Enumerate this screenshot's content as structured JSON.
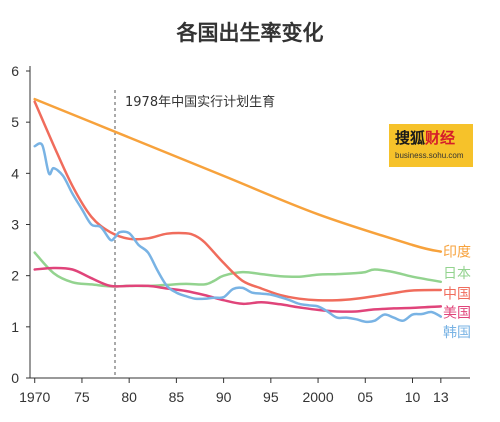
{
  "logo": {
    "name_part1": "搜狐",
    "name_part2": "财经",
    "url": "business.sohu.com"
  },
  "chart_data": {
    "type": "line",
    "title": "各国出生率变化",
    "xlim": [
      1969.5,
      2014.5
    ],
    "ylim": [
      0,
      6
    ],
    "yticks": [
      0,
      1,
      2,
      3,
      4,
      5,
      6
    ],
    "xticks": [
      {
        "value": 1970,
        "label": "1970"
      },
      {
        "value": 1975,
        "label": "75"
      },
      {
        "value": 1980,
        "label": "80"
      },
      {
        "value": 1985,
        "label": "85"
      },
      {
        "value": 1990,
        "label": "90"
      },
      {
        "value": 1995,
        "label": "95"
      },
      {
        "value": 2000,
        "label": "2000"
      },
      {
        "value": 2005,
        "label": "05"
      },
      {
        "value": 2010,
        "label": "10"
      },
      {
        "value": 2013,
        "label": "13"
      }
    ],
    "annotation": {
      "x": 1978.5,
      "text": "1978年中国实行计划生育"
    },
    "grid": false,
    "legend": "right-end labels",
    "series": [
      {
        "name": "印度",
        "color": "#f7a23c",
        "x": [
          1970,
          1980,
          1990,
          2000,
          2010,
          2013
        ],
        "y": [
          5.45,
          4.7,
          3.95,
          3.2,
          2.6,
          2.47
        ]
      },
      {
        "name": "日本",
        "color": "#93d38f",
        "x": [
          1970,
          1972,
          1974,
          1976,
          1978,
          1980,
          1982,
          1984,
          1986,
          1988,
          1989,
          1990,
          1992,
          1994,
          1996,
          1998,
          2000,
          2002,
          2004,
          2005,
          2006,
          2008,
          2010,
          2013
        ],
        "y": [
          2.45,
          2.05,
          1.87,
          1.83,
          1.79,
          1.8,
          1.8,
          1.82,
          1.84,
          1.83,
          1.9,
          2.0,
          2.07,
          2.03,
          1.99,
          1.98,
          2.02,
          2.03,
          2.05,
          2.07,
          2.12,
          2.07,
          1.98,
          1.88
        ]
      },
      {
        "name": "中国",
        "color": "#f06c5c",
        "x": [
          1970,
          1972,
          1974,
          1976,
          1978,
          1980,
          1982,
          1984,
          1986,
          1987,
          1988,
          1990,
          1992,
          1994,
          1996,
          1998,
          2000,
          2002,
          2004,
          2006,
          2008,
          2010,
          2013
        ],
        "y": [
          5.4,
          4.55,
          3.75,
          3.15,
          2.85,
          2.72,
          2.73,
          2.82,
          2.83,
          2.78,
          2.65,
          2.25,
          1.9,
          1.75,
          1.62,
          1.55,
          1.52,
          1.52,
          1.55,
          1.6,
          1.66,
          1.71,
          1.72
        ]
      },
      {
        "name": "美国",
        "color": "#e0447a",
        "x": [
          1970,
          1972,
          1974,
          1976,
          1978,
          1980,
          1982,
          1984,
          1986,
          1988,
          1990,
          1992,
          1994,
          1996,
          1998,
          2000,
          2002,
          2004,
          2006,
          2008,
          2010,
          2013
        ],
        "y": [
          2.12,
          2.15,
          2.12,
          1.95,
          1.8,
          1.8,
          1.8,
          1.75,
          1.7,
          1.62,
          1.52,
          1.45,
          1.48,
          1.44,
          1.38,
          1.33,
          1.3,
          1.3,
          1.34,
          1.36,
          1.37,
          1.4
        ]
      },
      {
        "name": "韩国",
        "color": "#79b3e4",
        "x": [
          1970,
          1970.8,
          1971.5,
          1972,
          1973,
          1974,
          1975,
          1976,
          1977,
          1978,
          1978.5,
          1979,
          1980,
          1981,
          1982,
          1983,
          1984,
          1985,
          1986,
          1987,
          1988,
          1989,
          1990,
          1991,
          1992,
          1993,
          1994,
          1995,
          1996,
          1997,
          1998,
          1999,
          2000,
          2001,
          2002,
          2003,
          2004,
          2005,
          2006,
          2007,
          2008,
          2009,
          2010,
          2011,
          2012,
          2013
        ],
        "y": [
          4.53,
          4.55,
          4.0,
          4.1,
          3.95,
          3.6,
          3.3,
          3.0,
          2.95,
          2.7,
          2.75,
          2.85,
          2.83,
          2.6,
          2.45,
          2.1,
          1.8,
          1.67,
          1.6,
          1.55,
          1.55,
          1.57,
          1.58,
          1.74,
          1.76,
          1.67,
          1.65,
          1.63,
          1.58,
          1.52,
          1.45,
          1.42,
          1.4,
          1.3,
          1.18,
          1.18,
          1.15,
          1.1,
          1.12,
          1.24,
          1.18,
          1.12,
          1.24,
          1.25,
          1.29,
          1.2
        ]
      }
    ],
    "end_labels": [
      {
        "text": "印度",
        "y": 2.47
      },
      {
        "text": "日本",
        "y": 2.05
      },
      {
        "text": "中国",
        "y": 1.65
      },
      {
        "text": "美国",
        "y": 1.28
      },
      {
        "text": "韩国",
        "y": 0.9
      }
    ]
  }
}
